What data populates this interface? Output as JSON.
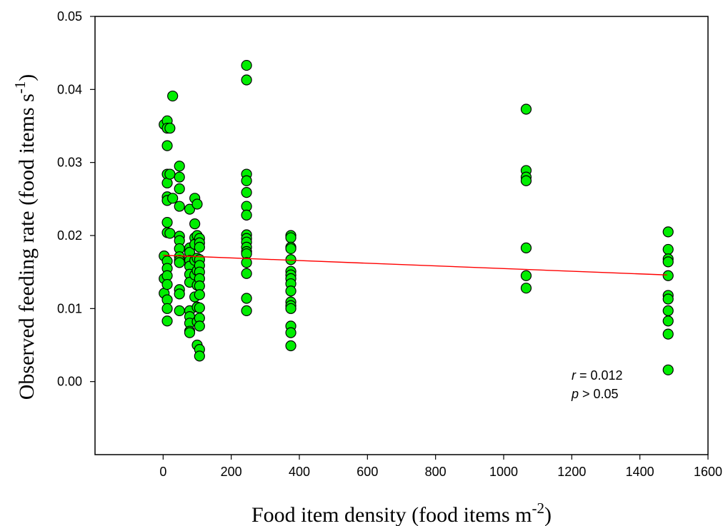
{
  "chart_data": {
    "type": "scatter",
    "xlabel": "Food item density (food items m",
    "xlabel_sup": "-2",
    "xlabel_end": ")",
    "ylabel": "Observed feeding rate (food items s",
    "ylabel_sup": "-1",
    "ylabel_end": ")",
    "xlim": [
      -200,
      1600
    ],
    "ylim": [
      -0.01,
      0.05
    ],
    "x_ticks": [
      0,
      200,
      400,
      600,
      800,
      1000,
      1200,
      1400,
      1600
    ],
    "x_tick_labels": [
      "0",
      "200",
      "400",
      "600",
      "800",
      "1000",
      "1200",
      "1400",
      "1600"
    ],
    "y_ticks": [
      0.0,
      0.01,
      0.02,
      0.03,
      0.04,
      0.05
    ],
    "y_tick_labels": [
      "0.00",
      "0.01",
      "0.02",
      "0.03",
      "0.04",
      "0.05"
    ],
    "grid": false,
    "marker_color": "#00ee00",
    "marker_edge": "#000000",
    "line_color": "#ff0000",
    "regression_line": {
      "x": [
        0,
        1480
      ],
      "y": [
        0.0173,
        0.0146
      ]
    },
    "annotation": {
      "r_symbol": "r",
      "r_text": " = 0.012",
      "p_symbol": "p",
      "p_text": " > 0.05"
    },
    "points": [
      {
        "x": 3,
        "y": 0.0352
      },
      {
        "x": 3,
        "y": 0.0172
      },
      {
        "x": 3,
        "y": 0.0141
      },
      {
        "x": 3,
        "y": 0.0121
      },
      {
        "x": 12,
        "y": 0.0357
      },
      {
        "x": 12,
        "y": 0.0347
      },
      {
        "x": 12,
        "y": 0.0323
      },
      {
        "x": 12,
        "y": 0.0284
      },
      {
        "x": 12,
        "y": 0.0272
      },
      {
        "x": 12,
        "y": 0.0253
      },
      {
        "x": 12,
        "y": 0.0248
      },
      {
        "x": 12,
        "y": 0.0218
      },
      {
        "x": 12,
        "y": 0.0204
      },
      {
        "x": 12,
        "y": 0.0165
      },
      {
        "x": 12,
        "y": 0.0155
      },
      {
        "x": 12,
        "y": 0.0145
      },
      {
        "x": 12,
        "y": 0.0133
      },
      {
        "x": 12,
        "y": 0.0112
      },
      {
        "x": 12,
        "y": 0.01
      },
      {
        "x": 12,
        "y": 0.0083
      },
      {
        "x": 20,
        "y": 0.0347
      },
      {
        "x": 20,
        "y": 0.0284
      },
      {
        "x": 20,
        "y": 0.0203
      },
      {
        "x": 28,
        "y": 0.0391
      },
      {
        "x": 28,
        "y": 0.0251
      },
      {
        "x": 48,
        "y": 0.0295
      },
      {
        "x": 48,
        "y": 0.028
      },
      {
        "x": 48,
        "y": 0.0264
      },
      {
        "x": 48,
        "y": 0.024
      },
      {
        "x": 48,
        "y": 0.0199
      },
      {
        "x": 48,
        "y": 0.0193
      },
      {
        "x": 48,
        "y": 0.0182
      },
      {
        "x": 48,
        "y": 0.0171
      },
      {
        "x": 48,
        "y": 0.0166
      },
      {
        "x": 48,
        "y": 0.0163
      },
      {
        "x": 48,
        "y": 0.0126
      },
      {
        "x": 48,
        "y": 0.012
      },
      {
        "x": 48,
        "y": 0.0097
      },
      {
        "x": 78,
        "y": 0.0236
      },
      {
        "x": 78,
        "y": 0.0183
      },
      {
        "x": 78,
        "y": 0.0177
      },
      {
        "x": 78,
        "y": 0.0166
      },
      {
        "x": 78,
        "y": 0.0158
      },
      {
        "x": 78,
        "y": 0.0147
      },
      {
        "x": 78,
        "y": 0.0136
      },
      {
        "x": 78,
        "y": 0.0097
      },
      {
        "x": 78,
        "y": 0.0089
      },
      {
        "x": 78,
        "y": 0.008
      },
      {
        "x": 78,
        "y": 0.0069
      },
      {
        "x": 78,
        "y": 0.0067
      },
      {
        "x": 93,
        "y": 0.0251
      },
      {
        "x": 93,
        "y": 0.0216
      },
      {
        "x": 93,
        "y": 0.0197
      },
      {
        "x": 93,
        "y": 0.0188
      },
      {
        "x": 93,
        "y": 0.0166
      },
      {
        "x": 93,
        "y": 0.0146
      },
      {
        "x": 93,
        "y": 0.0116
      },
      {
        "x": 100,
        "y": 0.0243
      },
      {
        "x": 100,
        "y": 0.02
      },
      {
        "x": 100,
        "y": 0.0169
      },
      {
        "x": 100,
        "y": 0.0152
      },
      {
        "x": 100,
        "y": 0.0132
      },
      {
        "x": 100,
        "y": 0.0102
      },
      {
        "x": 100,
        "y": 0.0082
      },
      {
        "x": 100,
        "y": 0.005
      },
      {
        "x": 107,
        "y": 0.0196
      },
      {
        "x": 107,
        "y": 0.019
      },
      {
        "x": 107,
        "y": 0.0184
      },
      {
        "x": 107,
        "y": 0.0167
      },
      {
        "x": 107,
        "y": 0.0159
      },
      {
        "x": 107,
        "y": 0.015
      },
      {
        "x": 107,
        "y": 0.0141
      },
      {
        "x": 107,
        "y": 0.0131
      },
      {
        "x": 107,
        "y": 0.0119
      },
      {
        "x": 107,
        "y": 0.0101
      },
      {
        "x": 107,
        "y": 0.0087
      },
      {
        "x": 107,
        "y": 0.0076
      },
      {
        "x": 107,
        "y": 0.0044
      },
      {
        "x": 107,
        "y": 0.0035
      },
      {
        "x": 245,
        "y": 0.0433
      },
      {
        "x": 245,
        "y": 0.0413
      },
      {
        "x": 245,
        "y": 0.0284
      },
      {
        "x": 245,
        "y": 0.0275
      },
      {
        "x": 245,
        "y": 0.0259
      },
      {
        "x": 245,
        "y": 0.024
      },
      {
        "x": 245,
        "y": 0.0228
      },
      {
        "x": 245,
        "y": 0.0201
      },
      {
        "x": 245,
        "y": 0.0196
      },
      {
        "x": 245,
        "y": 0.0191
      },
      {
        "x": 245,
        "y": 0.0184
      },
      {
        "x": 245,
        "y": 0.0178
      },
      {
        "x": 245,
        "y": 0.0175
      },
      {
        "x": 245,
        "y": 0.0163
      },
      {
        "x": 245,
        "y": 0.0148
      },
      {
        "x": 245,
        "y": 0.0114
      },
      {
        "x": 245,
        "y": 0.0097
      },
      {
        "x": 375,
        "y": 0.02
      },
      {
        "x": 375,
        "y": 0.0197
      },
      {
        "x": 375,
        "y": 0.0184
      },
      {
        "x": 375,
        "y": 0.0182
      },
      {
        "x": 375,
        "y": 0.0167
      },
      {
        "x": 375,
        "y": 0.0151
      },
      {
        "x": 375,
        "y": 0.0146
      },
      {
        "x": 375,
        "y": 0.0141
      },
      {
        "x": 375,
        "y": 0.0134
      },
      {
        "x": 375,
        "y": 0.0124
      },
      {
        "x": 375,
        "y": 0.0109
      },
      {
        "x": 375,
        "y": 0.0104
      },
      {
        "x": 375,
        "y": 0.01
      },
      {
        "x": 375,
        "y": 0.0076
      },
      {
        "x": 375,
        "y": 0.0067
      },
      {
        "x": 375,
        "y": 0.0049
      },
      {
        "x": 1066,
        "y": 0.0373
      },
      {
        "x": 1066,
        "y": 0.0289
      },
      {
        "x": 1066,
        "y": 0.028
      },
      {
        "x": 1066,
        "y": 0.0275
      },
      {
        "x": 1066,
        "y": 0.0183
      },
      {
        "x": 1066,
        "y": 0.0145
      },
      {
        "x": 1066,
        "y": 0.0128
      },
      {
        "x": 1483,
        "y": 0.0205
      },
      {
        "x": 1483,
        "y": 0.0181
      },
      {
        "x": 1483,
        "y": 0.0168
      },
      {
        "x": 1483,
        "y": 0.0164
      },
      {
        "x": 1483,
        "y": 0.0145
      },
      {
        "x": 1483,
        "y": 0.0118
      },
      {
        "x": 1483,
        "y": 0.0113
      },
      {
        "x": 1483,
        "y": 0.0097
      },
      {
        "x": 1483,
        "y": 0.0083
      },
      {
        "x": 1483,
        "y": 0.0065
      },
      {
        "x": 1483,
        "y": 0.0016
      }
    ]
  }
}
